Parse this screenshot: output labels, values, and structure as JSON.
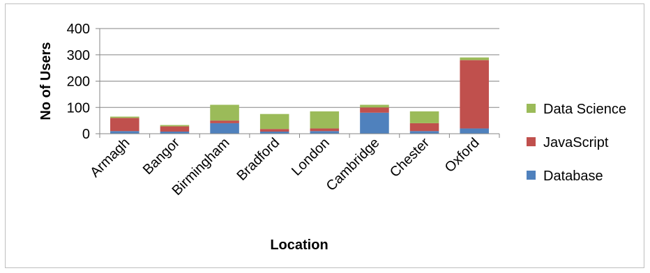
{
  "chart_data": {
    "type": "bar",
    "stacked": true,
    "categories": [
      "Armagh",
      "Bangor",
      "Birmingham",
      "Bradford",
      "London",
      "Cambridge",
      "Chester",
      "Oxford"
    ],
    "series": [
      {
        "name": "Database",
        "color": "#4f81bd",
        "values": [
          10,
          8,
          40,
          8,
          10,
          80,
          10,
          20
        ]
      },
      {
        "name": "JavaScript",
        "color": "#c0504d",
        "values": [
          50,
          20,
          10,
          10,
          10,
          20,
          30,
          260
        ]
      },
      {
        "name": "Data Science",
        "color": "#9bbb59",
        "values": [
          5,
          5,
          60,
          57,
          65,
          10,
          45,
          10
        ]
      }
    ],
    "xlabel": "Location",
    "ylabel": "No of Users",
    "ylim": [
      0,
      400
    ],
    "yticks": [
      "0",
      "100",
      "200",
      "300",
      "400"
    ],
    "grid": true,
    "legend_position": "right"
  }
}
